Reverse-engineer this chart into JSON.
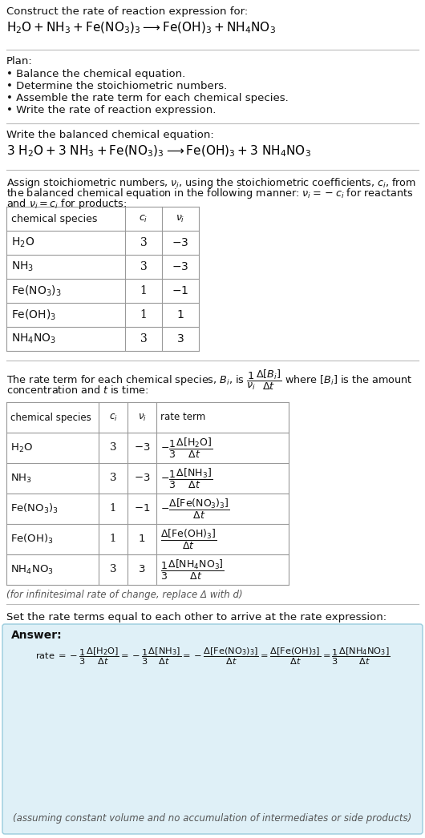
{
  "bg_color": "#ffffff",
  "table_border_color": "#999999",
  "answer_box_color": "#dff0f7",
  "answer_box_border": "#99ccdd",
  "plan_items": [
    "• Balance the chemical equation.",
    "• Determine the stoichiometric numbers.",
    "• Assemble the rate term for each chemical species.",
    "• Write the rate of reaction expression."
  ],
  "infinitesimal_note": "(for infinitesimal rate of change, replace Δ with d)",
  "set_rate_text": "Set the rate terms equal to each other to arrive at the rate expression:",
  "answer_note": "(assuming constant volume and no accumulation of intermediates or side products)",
  "table1_chem": [
    "$\\mathrm{H_2O}$",
    "$\\mathrm{NH_3}$",
    "$\\mathrm{Fe(NO_3)_3}$",
    "$\\mathrm{Fe(OH)_3}$",
    "$\\mathrm{NH_4NO_3}$"
  ],
  "table1_ci": [
    "3",
    "3",
    "1",
    "1",
    "3"
  ],
  "table1_vi": [
    "-3",
    "-3",
    "-1",
    "1",
    "3"
  ],
  "table2_rate": [
    "$-\\dfrac{1}{3}\\dfrac{\\Delta[\\mathrm{H_2O}]}{\\Delta t}$",
    "$-\\dfrac{1}{3}\\dfrac{\\Delta[\\mathrm{NH_3}]}{\\Delta t}$",
    "$-\\dfrac{\\Delta[\\mathrm{Fe(NO_3)_3}]}{\\Delta t}$",
    "$\\dfrac{\\Delta[\\mathrm{Fe(OH)_3}]}{\\Delta t}$",
    "$\\dfrac{1}{3}\\dfrac{\\Delta[\\mathrm{NH_4NO_3}]}{\\Delta t}$"
  ]
}
